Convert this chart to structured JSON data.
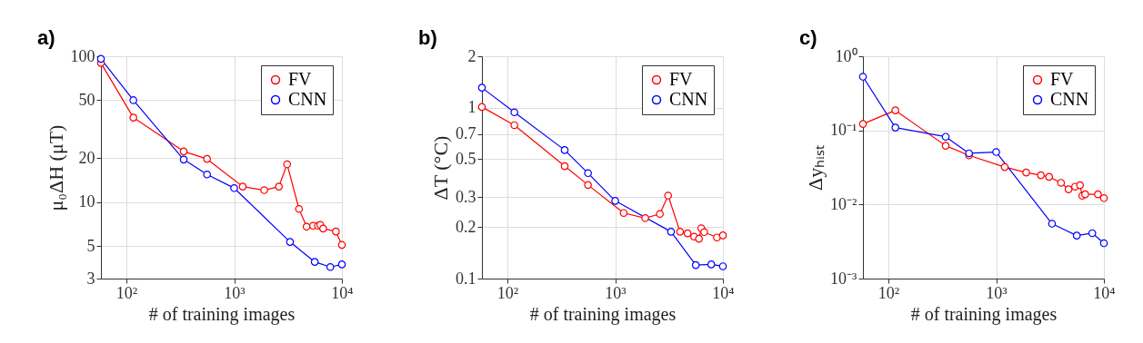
{
  "chart_data": [
    {
      "type": "line",
      "annotations": [
        "a)"
      ],
      "xlabel": "# of training images",
      "ylabel": "μ₀ΔH (μT)",
      "log": "xy",
      "grid": true,
      "legend": "top right",
      "marker": "circle",
      "line_style": "solid",
      "xlim": [
        58,
        10000
      ],
      "xticks": [
        {
          "value": 100,
          "label": "10²"
        },
        {
          "value": 1000,
          "label": "10³"
        },
        {
          "value": 10000,
          "label": "10⁴"
        }
      ],
      "ylim": [
        3,
        100
      ],
      "yticks": [
        3,
        5,
        10,
        20,
        50,
        100
      ],
      "series": [
        {
          "name": "FV",
          "color": "#ff0000",
          "x": [
            58,
            116,
            340,
            560,
            1200,
            1900,
            2600,
            3100,
            4000,
            4700,
            5400,
            6000,
            6300,
            6700,
            8800,
            10000
          ],
          "values": [
            90,
            38,
            22.3,
            19.8,
            12.8,
            12.1,
            12.8,
            18.2,
            9.0,
            6.8,
            6.9,
            6.9,
            7.0,
            6.6,
            6.3,
            5.1
          ]
        },
        {
          "name": "CNN",
          "color": "#0000ff",
          "x": [
            58,
            116,
            340,
            560,
            1000,
            3300,
            5600,
            7800,
            10000
          ],
          "values": [
            96,
            50,
            19.6,
            15.5,
            12.5,
            5.35,
            3.9,
            3.6,
            3.75
          ]
        }
      ]
    },
    {
      "type": "line",
      "annotations": [
        "b)"
      ],
      "xlabel": "# of training images",
      "ylabel": "ΔT (°C)",
      "log": "xy",
      "grid": true,
      "legend": "top right",
      "marker": "circle",
      "line_style": "solid",
      "xlim": [
        58,
        10000
      ],
      "xticks": [
        {
          "value": 100,
          "label": "10²"
        },
        {
          "value": 1000,
          "label": "10³"
        },
        {
          "value": 10000,
          "label": "10⁴"
        }
      ],
      "ylim": [
        0.1,
        2
      ],
      "yticks": [
        0.1,
        0.2,
        0.3,
        0.5,
        0.7,
        1,
        2
      ],
      "series": [
        {
          "name": "FV",
          "color": "#ff0000",
          "x": [
            58,
            116,
            340,
            560,
            1200,
            1900,
            2600,
            3100,
            4000,
            4700,
            5400,
            6000,
            6300,
            6700,
            8800,
            10000
          ],
          "values": [
            1.01,
            0.79,
            0.455,
            0.353,
            0.242,
            0.226,
            0.239,
            0.306,
            0.188,
            0.184,
            0.176,
            0.171,
            0.197,
            0.187,
            0.174,
            0.179
          ]
        },
        {
          "name": "CNN",
          "color": "#0000ff",
          "x": [
            58,
            116,
            340,
            560,
            1000,
            3300,
            5600,
            7800,
            10000
          ],
          "values": [
            1.31,
            0.94,
            0.565,
            0.414,
            0.285,
            0.188,
            0.12,
            0.121,
            0.118
          ]
        }
      ]
    },
    {
      "type": "line",
      "annotations": [
        "c)"
      ],
      "xlabel": "# of training images",
      "ylabel": "Δyₕᵢₛₜ",
      "log": "xy",
      "grid": true,
      "legend": "top right",
      "marker": "circle",
      "line_style": "solid",
      "xlim": [
        58,
        10000
      ],
      "xticks": [
        {
          "value": 100,
          "label": "10²"
        },
        {
          "value": 1000,
          "label": "10³"
        },
        {
          "value": 10000,
          "label": "10⁴"
        }
      ],
      "ylim": [
        0.001,
        1
      ],
      "yticks": [
        {
          "value": 0.001,
          "label": "10⁻³"
        },
        {
          "value": 0.01,
          "label": "10⁻²"
        },
        {
          "value": 0.1,
          "label": "10⁻¹"
        },
        {
          "value": 1,
          "label": "10⁰"
        }
      ],
      "series": [
        {
          "name": "FV",
          "color": "#ff0000",
          "x": [
            58,
            116,
            340,
            560,
            1200,
            1900,
            2600,
            3100,
            4000,
            4700,
            5400,
            6000,
            6300,
            6700,
            8800,
            10000
          ],
          "values": [
            0.122,
            0.186,
            0.062,
            0.046,
            0.032,
            0.027,
            0.0248,
            0.0236,
            0.0196,
            0.016,
            0.0174,
            0.0182,
            0.0131,
            0.0137,
            0.0137,
            0.0122
          ]
        },
        {
          "name": "CNN",
          "color": "#0000ff",
          "x": [
            58,
            116,
            340,
            560,
            1000,
            3300,
            5600,
            7800,
            10000
          ],
          "values": [
            0.53,
            0.109,
            0.082,
            0.049,
            0.051,
            0.0055,
            0.0038,
            0.0041,
            0.003
          ]
        }
      ]
    }
  ]
}
